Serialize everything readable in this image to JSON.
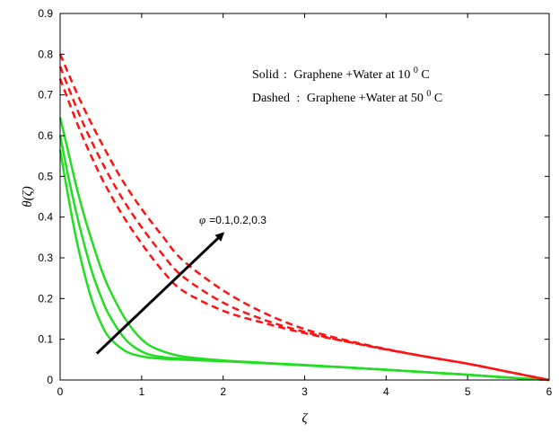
{
  "chart_data": {
    "type": "line",
    "title": "",
    "xlabel": "ζ",
    "ylabel": "θ(ζ)",
    "xlim": [
      0,
      6
    ],
    "ylim": [
      0,
      0.9
    ],
    "xticks": [
      "0",
      "1",
      "2",
      "3",
      "4",
      "5",
      "6"
    ],
    "yticks": [
      "0",
      "0.1",
      "0.2",
      "0.3",
      "0.4",
      "0.5",
      "0.6",
      "0.7",
      "0.8",
      "0.9"
    ],
    "grid": false,
    "legend": {
      "placement": "top-right",
      "lines": [
        {
          "label": "Solid",
          "sep": ":",
          "text": "Graphene +Water at 10",
          "sup": "0",
          "unit": "C"
        },
        {
          "label": "Dashed",
          "sep": ":",
          "text": "Graphene +Water at 50",
          "sup": "0",
          "unit": "C"
        }
      ]
    },
    "annotation": {
      "symbol": "φ",
      "text": "=0.1,0.2,0.3",
      "arrow_from": [
        0.45,
        0.065
      ],
      "arrow_to": [
        2.0,
        0.36
      ]
    },
    "series": [
      {
        "style": "solid",
        "color": "#22dd22",
        "x": [
          0,
          0.1,
          0.2,
          0.3,
          0.4,
          0.5,
          0.6,
          0.8,
          1.0,
          1.2,
          1.5,
          2.0,
          2.5,
          3.0,
          3.5,
          4.0,
          4.5,
          5.0,
          5.5,
          6.0
        ],
        "values": [
          0.565,
          0.45,
          0.345,
          0.26,
          0.19,
          0.14,
          0.105,
          0.071,
          0.058,
          0.053,
          0.05,
          0.046,
          0.041,
          0.036,
          0.031,
          0.025,
          0.019,
          0.013,
          0.006,
          0.0
        ]
      },
      {
        "style": "solid",
        "color": "#22dd22",
        "x": [
          0,
          0.1,
          0.2,
          0.3,
          0.4,
          0.5,
          0.6,
          0.8,
          1.0,
          1.2,
          1.5,
          2.0,
          2.5,
          3.0,
          3.5,
          4.0,
          4.5,
          5.0,
          5.5,
          6.0
        ],
        "values": [
          0.6,
          0.5,
          0.41,
          0.33,
          0.26,
          0.205,
          0.16,
          0.1,
          0.07,
          0.058,
          0.052,
          0.047,
          0.042,
          0.036,
          0.031,
          0.025,
          0.019,
          0.013,
          0.006,
          0.0
        ]
      },
      {
        "style": "solid",
        "color": "#22dd22",
        "x": [
          0,
          0.1,
          0.2,
          0.3,
          0.4,
          0.5,
          0.6,
          0.8,
          1.0,
          1.2,
          1.5,
          2.0,
          2.5,
          3.0,
          3.5,
          4.0,
          4.5,
          5.0,
          5.5,
          6.0
        ],
        "values": [
          0.645,
          0.56,
          0.475,
          0.4,
          0.335,
          0.275,
          0.225,
          0.15,
          0.1,
          0.075,
          0.058,
          0.048,
          0.042,
          0.037,
          0.031,
          0.025,
          0.019,
          0.013,
          0.006,
          0.0
        ]
      },
      {
        "style": "dashed",
        "color": "#ff1111",
        "x": [
          0,
          0.25,
          0.5,
          0.75,
          1.0,
          1.25,
          1.5,
          2.0,
          2.5,
          3.0,
          3.5,
          4.0,
          4.5,
          5.0,
          5.5,
          6.0
        ],
        "values": [
          0.74,
          0.61,
          0.5,
          0.41,
          0.335,
          0.27,
          0.22,
          0.17,
          0.14,
          0.115,
          0.095,
          0.075,
          0.057,
          0.04,
          0.02,
          0.0
        ]
      },
      {
        "style": "dashed",
        "color": "#ff1111",
        "x": [
          0,
          0.25,
          0.5,
          0.75,
          1.0,
          1.25,
          1.5,
          2.0,
          2.5,
          3.0,
          3.5,
          4.0,
          4.5,
          5.0,
          5.5,
          6.0
        ],
        "values": [
          0.77,
          0.645,
          0.54,
          0.45,
          0.375,
          0.31,
          0.255,
          0.19,
          0.148,
          0.118,
          0.095,
          0.075,
          0.057,
          0.04,
          0.02,
          0.0
        ]
      },
      {
        "style": "dashed",
        "color": "#ff1111",
        "x": [
          0,
          0.25,
          0.5,
          0.75,
          1.0,
          1.25,
          1.5,
          2.0,
          2.5,
          3.0,
          3.5,
          4.0,
          4.5,
          5.0,
          5.5,
          6.0
        ],
        "values": [
          0.8,
          0.685,
          0.585,
          0.495,
          0.42,
          0.355,
          0.295,
          0.22,
          0.165,
          0.125,
          0.098,
          0.076,
          0.057,
          0.04,
          0.02,
          0.0
        ]
      }
    ]
  }
}
